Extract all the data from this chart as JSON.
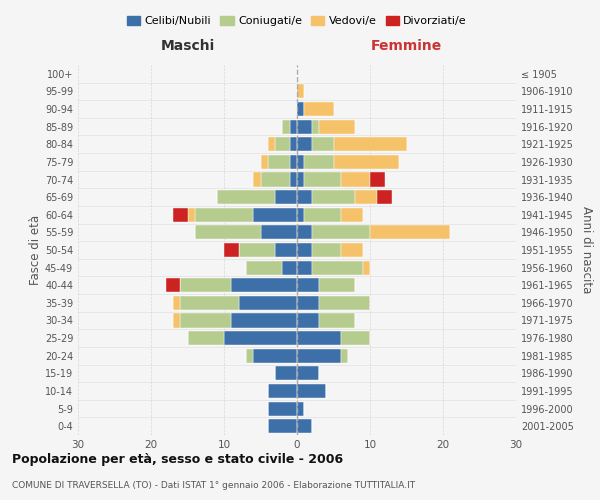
{
  "age_groups": [
    "0-4",
    "5-9",
    "10-14",
    "15-19",
    "20-24",
    "25-29",
    "30-34",
    "35-39",
    "40-44",
    "45-49",
    "50-54",
    "55-59",
    "60-64",
    "65-69",
    "70-74",
    "75-79",
    "80-84",
    "85-89",
    "90-94",
    "95-99",
    "100+"
  ],
  "birth_years": [
    "2001-2005",
    "1996-2000",
    "1991-1995",
    "1986-1990",
    "1981-1985",
    "1976-1980",
    "1971-1975",
    "1966-1970",
    "1961-1965",
    "1956-1960",
    "1951-1955",
    "1946-1950",
    "1941-1945",
    "1936-1940",
    "1931-1935",
    "1926-1930",
    "1921-1925",
    "1916-1920",
    "1911-1915",
    "1906-1910",
    "≤ 1905"
  ],
  "maschi": {
    "celibi": [
      4,
      4,
      4,
      3,
      6,
      10,
      9,
      8,
      9,
      2,
      3,
      5,
      6,
      3,
      1,
      1,
      1,
      1,
      0,
      0,
      0
    ],
    "coniugati": [
      0,
      0,
      0,
      0,
      1,
      5,
      7,
      8,
      7,
      5,
      5,
      9,
      8,
      8,
      4,
      3,
      2,
      1,
      0,
      0,
      0
    ],
    "vedovi": [
      0,
      0,
      0,
      0,
      0,
      0,
      1,
      1,
      0,
      0,
      0,
      0,
      1,
      0,
      1,
      1,
      1,
      0,
      0,
      0,
      0
    ],
    "divorziati": [
      0,
      0,
      0,
      0,
      0,
      0,
      0,
      0,
      2,
      0,
      2,
      0,
      2,
      0,
      0,
      0,
      0,
      0,
      0,
      0,
      0
    ]
  },
  "femmine": {
    "nubili": [
      2,
      1,
      4,
      3,
      6,
      6,
      3,
      3,
      3,
      2,
      2,
      2,
      1,
      2,
      1,
      1,
      2,
      2,
      1,
      0,
      0
    ],
    "coniugate": [
      0,
      0,
      0,
      0,
      1,
      4,
      5,
      7,
      5,
      7,
      4,
      8,
      5,
      6,
      5,
      4,
      3,
      1,
      0,
      0,
      0
    ],
    "vedove": [
      0,
      0,
      0,
      0,
      0,
      0,
      0,
      0,
      0,
      1,
      3,
      11,
      3,
      3,
      4,
      9,
      10,
      5,
      4,
      1,
      0
    ],
    "divorziate": [
      0,
      0,
      0,
      0,
      0,
      0,
      0,
      0,
      0,
      0,
      0,
      0,
      0,
      2,
      2,
      0,
      0,
      0,
      0,
      0,
      0
    ]
  },
  "colors": {
    "celibi_nubili": "#3d6fa8",
    "coniugati": "#b5cc8e",
    "vedovi": "#f5c169",
    "divorziati": "#cc2222"
  },
  "title": "Popolazione per età, sesso e stato civile - 2006",
  "subtitle": "COMUNE DI TRAVERSELLA (TO) - Dati ISTAT 1° gennaio 2006 - Elaborazione TUTTITALIA.IT",
  "xlabel_left": "Maschi",
  "xlabel_right": "Femmine",
  "ylabel_left": "Fasce di età",
  "ylabel_right": "Anni di nascita",
  "xlim": 30,
  "bg_color": "#f5f5f5",
  "grid_color": "#cccccc",
  "legend_labels": [
    "Celibi/Nubili",
    "Coniugati/e",
    "Vedovi/e",
    "Divorziati/e"
  ]
}
